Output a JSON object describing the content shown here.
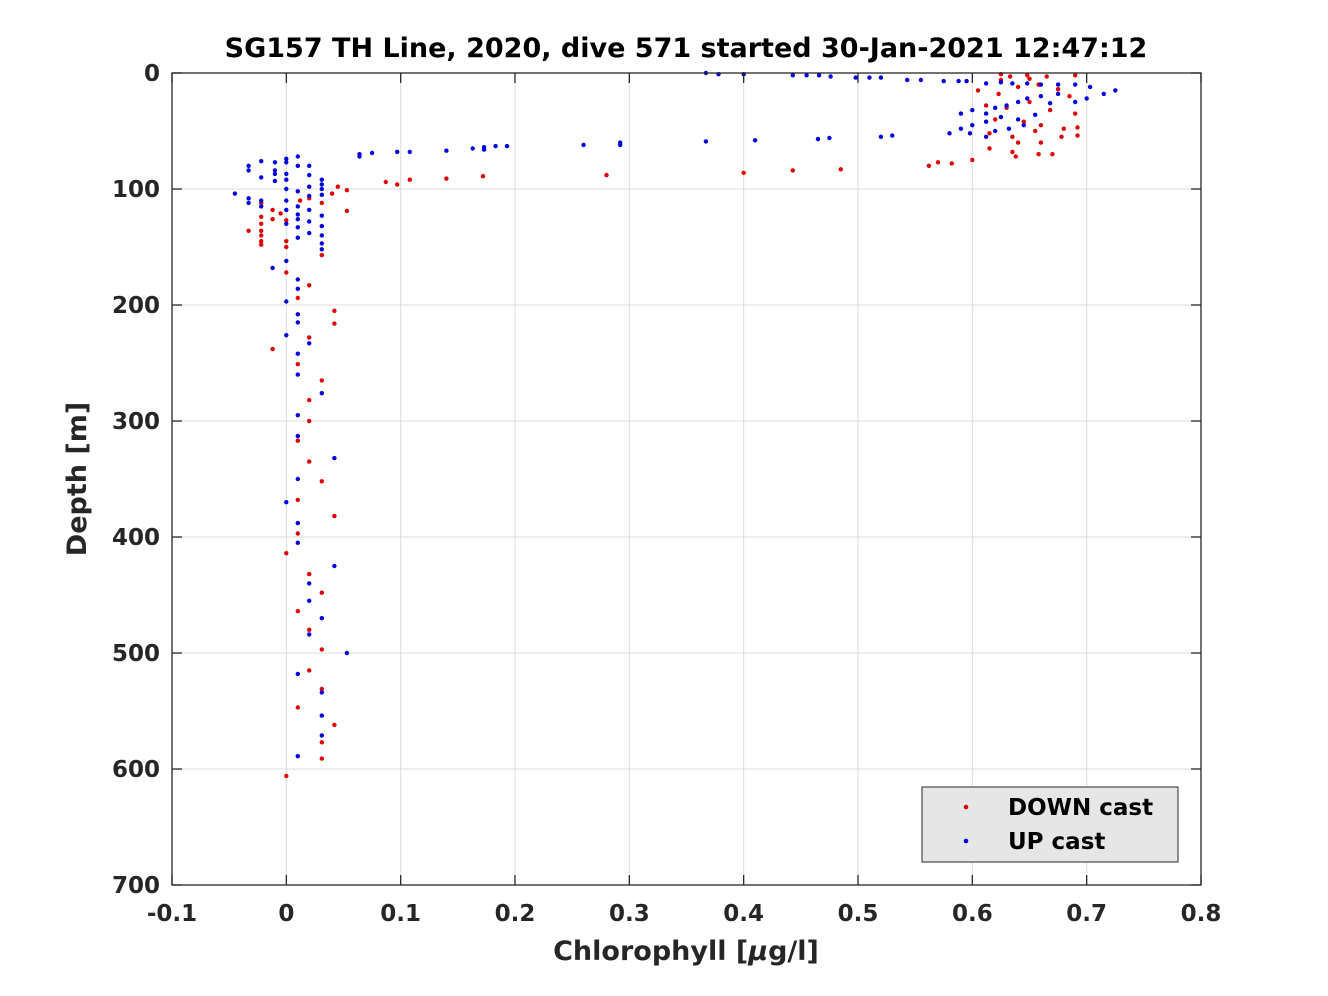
{
  "chart_data": {
    "type": "scatter",
    "title": "SG157 TH Line, 2020, dive 571 started 30-Jan-2021 12:47:12",
    "xlabel_pre": "Chlorophyll [",
    "xlabel_mu": "μ",
    "xlabel_post": "g/l]",
    "ylabel": "Depth [m]",
    "xlim": [
      -0.1,
      0.8
    ],
    "ylim": [
      0,
      700
    ],
    "y_reversed": true,
    "grid": true,
    "legend_position": "bottom-right",
    "xticks": [
      -0.1,
      0,
      0.1,
      0.2,
      0.3,
      0.4,
      0.5,
      0.6,
      0.7,
      0.8
    ],
    "xtick_labels": [
      "-0.1",
      "0",
      "0.1",
      "0.2",
      "0.3",
      "0.4",
      "0.5",
      "0.6",
      "0.7",
      "0.8"
    ],
    "yticks": [
      0,
      100,
      200,
      300,
      400,
      500,
      600,
      700
    ],
    "ytick_labels": [
      "0",
      "100",
      "200",
      "300",
      "400",
      "500",
      "600",
      "700"
    ],
    "series": [
      {
        "name": "DOWN cast",
        "color": "#e00000",
        "points": [
          [
            0.625,
            1
          ],
          [
            0.633,
            3
          ],
          [
            0.648,
            2
          ],
          [
            0.665,
            3
          ],
          [
            0.69,
            2
          ],
          [
            0.625,
            6
          ],
          [
            0.65,
            5
          ],
          [
            0.605,
            15
          ],
          [
            0.623,
            18
          ],
          [
            0.64,
            12
          ],
          [
            0.658,
            10
          ],
          [
            0.675,
            14
          ],
          [
            0.685,
            20
          ],
          [
            0.612,
            28
          ],
          [
            0.63,
            30
          ],
          [
            0.65,
            25
          ],
          [
            0.668,
            32
          ],
          [
            0.69,
            35
          ],
          [
            0.62,
            40
          ],
          [
            0.645,
            42
          ],
          [
            0.66,
            45
          ],
          [
            0.68,
            48
          ],
          [
            0.692,
            47
          ],
          [
            0.615,
            52
          ],
          [
            0.635,
            55
          ],
          [
            0.655,
            50
          ],
          [
            0.678,
            55
          ],
          [
            0.692,
            54
          ],
          [
            0.64,
            60
          ],
          [
            0.66,
            60
          ],
          [
            0.615,
            65
          ],
          [
            0.635,
            68
          ],
          [
            0.658,
            70
          ],
          [
            0.67,
            70
          ],
          [
            0.638,
            72
          ],
          [
            0.6,
            75
          ],
          [
            0.582,
            78
          ],
          [
            0.57,
            77
          ],
          [
            0.562,
            80
          ],
          [
            0.485,
            83
          ],
          [
            0.443,
            84
          ],
          [
            0.4,
            86
          ],
          [
            0.28,
            88
          ],
          [
            0.172,
            89
          ],
          [
            0.14,
            91
          ],
          [
            0.108,
            92
          ],
          [
            0.087,
            94
          ],
          [
            0.097,
            96
          ],
          [
            0.045,
            98
          ],
          [
            0.053,
            101
          ],
          [
            0.04,
            104
          ],
          [
            0.02,
            108
          ],
          [
            0.012,
            110
          ],
          [
            0.031,
            112
          ],
          [
            -0.022,
            112
          ],
          [
            -0.012,
            118
          ],
          [
            0.053,
            119
          ],
          [
            -0.005,
            121
          ],
          [
            -0.022,
            124
          ],
          [
            -0.012,
            126
          ],
          [
            0.0,
            127
          ],
          [
            -0.022,
            130
          ],
          [
            -0.033,
            136
          ],
          [
            -0.022,
            136
          ],
          [
            -0.022,
            140
          ],
          [
            -0.022,
            145
          ],
          [
            -0.022,
            148
          ],
          [
            0.0,
            145
          ],
          [
            0.0,
            150
          ],
          [
            0.031,
            157
          ],
          [
            0.0,
            172
          ],
          [
            0.02,
            183
          ],
          [
            0.01,
            194
          ],
          [
            0.042,
            205
          ],
          [
            0.042,
            216
          ],
          [
            0.02,
            228
          ],
          [
            -0.012,
            238
          ],
          [
            0.01,
            251
          ],
          [
            0.031,
            265
          ],
          [
            0.02,
            282
          ],
          [
            0.02,
            300
          ],
          [
            0.01,
            317
          ],
          [
            0.02,
            335
          ],
          [
            0.031,
            352
          ],
          [
            0.01,
            368
          ],
          [
            0.042,
            382
          ],
          [
            0.01,
            397
          ],
          [
            0.0,
            414
          ],
          [
            0.02,
            432
          ],
          [
            0.031,
            448
          ],
          [
            0.01,
            464
          ],
          [
            0.02,
            480
          ],
          [
            0.031,
            497
          ],
          [
            0.02,
            515
          ],
          [
            0.031,
            531
          ],
          [
            0.01,
            547
          ],
          [
            0.042,
            562
          ],
          [
            0.031,
            577
          ],
          [
            0.031,
            591
          ],
          [
            0.0,
            606
          ]
        ]
      },
      {
        "name": "UP cast",
        "color": "#0000e0",
        "points": [
          [
            0.367,
            0
          ],
          [
            0.378,
            1
          ],
          [
            0.4,
            1
          ],
          [
            0.443,
            2
          ],
          [
            0.455,
            2
          ],
          [
            0.466,
            2
          ],
          [
            0.476,
            3
          ],
          [
            0.498,
            4
          ],
          [
            0.51,
            4
          ],
          [
            0.52,
            4
          ],
          [
            0.543,
            6
          ],
          [
            0.555,
            6
          ],
          [
            0.575,
            7
          ],
          [
            0.588,
            7
          ],
          [
            0.595,
            7
          ],
          [
            0.612,
            9
          ],
          [
            0.625,
            8
          ],
          [
            0.635,
            9
          ],
          [
            0.648,
            9
          ],
          [
            0.66,
            10
          ],
          [
            0.675,
            10
          ],
          [
            0.69,
            10
          ],
          [
            0.703,
            12
          ],
          [
            0.715,
            18
          ],
          [
            0.725,
            15
          ],
          [
            0.7,
            22
          ],
          [
            0.69,
            25
          ],
          [
            0.675,
            18
          ],
          [
            0.66,
            20
          ],
          [
            0.668,
            26
          ],
          [
            0.648,
            22
          ],
          [
            0.64,
            25
          ],
          [
            0.63,
            28
          ],
          [
            0.62,
            30
          ],
          [
            0.612,
            35
          ],
          [
            0.6,
            32
          ],
          [
            0.59,
            35
          ],
          [
            0.625,
            38
          ],
          [
            0.64,
            40
          ],
          [
            0.655,
            36
          ],
          [
            0.612,
            42
          ],
          [
            0.6,
            45
          ],
          [
            0.59,
            48
          ],
          [
            0.62,
            50
          ],
          [
            0.632,
            48
          ],
          [
            0.645,
            45
          ],
          [
            0.58,
            52
          ],
          [
            0.598,
            52
          ],
          [
            0.612,
            55
          ],
          [
            0.53,
            54
          ],
          [
            0.52,
            55
          ],
          [
            0.475,
            56
          ],
          [
            0.465,
            57
          ],
          [
            0.41,
            58
          ],
          [
            0.367,
            59
          ],
          [
            0.292,
            60
          ],
          [
            0.292,
            62
          ],
          [
            0.26,
            62
          ],
          [
            0.193,
            63
          ],
          [
            0.183,
            63
          ],
          [
            0.173,
            64
          ],
          [
            0.163,
            65
          ],
          [
            0.173,
            66
          ],
          [
            0.14,
            67
          ],
          [
            0.108,
            68
          ],
          [
            0.097,
            68
          ],
          [
            0.075,
            69
          ],
          [
            0.064,
            70
          ],
          [
            0.064,
            72
          ],
          [
            0.01,
            72
          ],
          [
            0.0,
            74
          ],
          [
            0.0,
            77
          ],
          [
            -0.01,
            77
          ],
          [
            -0.022,
            76
          ],
          [
            0.01,
            80
          ],
          [
            0.02,
            80
          ],
          [
            -0.033,
            80
          ],
          [
            -0.033,
            84
          ],
          [
            -0.01,
            84
          ],
          [
            -0.01,
            87
          ],
          [
            0.0,
            87
          ],
          [
            0.02,
            88
          ],
          [
            -0.022,
            90
          ],
          [
            -0.01,
            93
          ],
          [
            0.0,
            92
          ],
          [
            0.031,
            92
          ],
          [
            0.031,
            96
          ],
          [
            0.02,
            98
          ],
          [
            0.031,
            100
          ],
          [
            0.0,
            100
          ],
          [
            0.01,
            102
          ],
          [
            -0.045,
            104
          ],
          [
            0.031,
            105
          ],
          [
            0.02,
            106
          ],
          [
            -0.033,
            108
          ],
          [
            -0.022,
            110
          ],
          [
            0.0,
            110
          ],
          [
            0.01,
            115
          ],
          [
            0.02,
            118
          ],
          [
            -0.033,
            112
          ],
          [
            -0.022,
            115
          ],
          [
            0.0,
            118
          ],
          [
            0.01,
            122
          ],
          [
            0.031,
            123
          ],
          [
            0.01,
            126
          ],
          [
            0.02,
            128
          ],
          [
            0.0,
            130
          ],
          [
            0.031,
            132
          ],
          [
            0.01,
            133
          ],
          [
            0.02,
            138
          ],
          [
            0.031,
            140
          ],
          [
            0.01,
            142
          ],
          [
            0.031,
            147
          ],
          [
            0.031,
            152
          ],
          [
            0.0,
            162
          ],
          [
            -0.012,
            168
          ],
          [
            0.01,
            178
          ],
          [
            0.01,
            186
          ],
          [
            0.0,
            197
          ],
          [
            0.01,
            208
          ],
          [
            0.01,
            215
          ],
          [
            0.0,
            226
          ],
          [
            0.02,
            233
          ],
          [
            0.01,
            242
          ],
          [
            0.01,
            260
          ],
          [
            0.031,
            276
          ],
          [
            0.01,
            295
          ],
          [
            0.01,
            313
          ],
          [
            0.042,
            332
          ],
          [
            0.01,
            350
          ],
          [
            0.0,
            370
          ],
          [
            0.01,
            388
          ],
          [
            0.01,
            405
          ],
          [
            0.042,
            425
          ],
          [
            0.02,
            440
          ],
          [
            0.02,
            455
          ],
          [
            0.031,
            470
          ],
          [
            0.02,
            484
          ],
          [
            0.053,
            500
          ],
          [
            0.01,
            518
          ],
          [
            0.031,
            534
          ],
          [
            0.031,
            554
          ],
          [
            0.031,
            571
          ],
          [
            0.01,
            589
          ]
        ]
      }
    ]
  }
}
